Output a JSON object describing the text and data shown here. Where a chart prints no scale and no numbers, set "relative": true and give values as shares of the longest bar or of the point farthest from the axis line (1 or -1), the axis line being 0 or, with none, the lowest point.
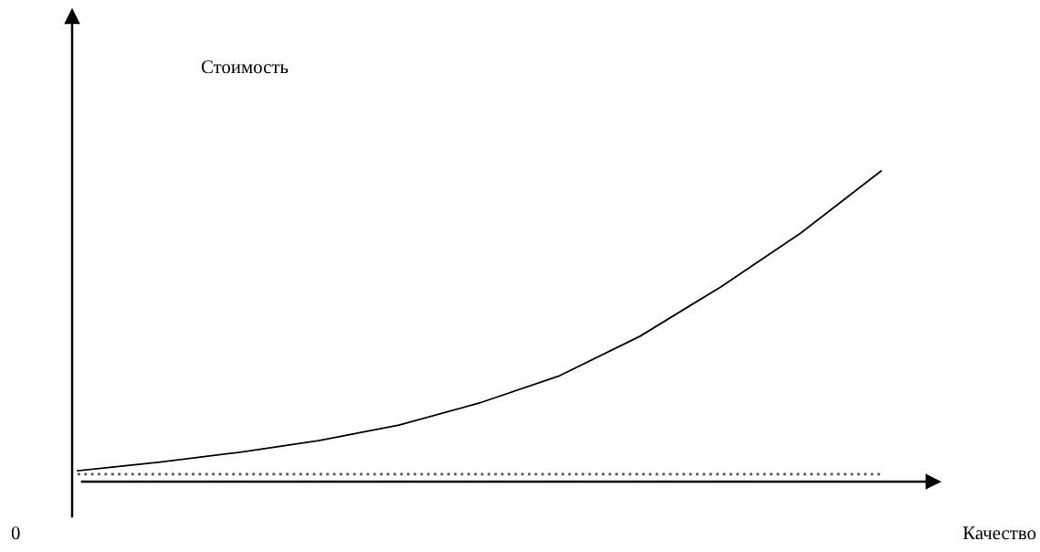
{
  "chart_data": {
    "type": "line",
    "relative": true,
    "xlabel": "Качество",
    "annotations": [
      "Стоимость",
      "0"
    ],
    "categories": [
      null,
      null,
      null,
      null,
      null,
      null,
      null,
      null,
      null,
      null,
      null
    ],
    "series": [
      {
        "color": "#000000",
        "line_style": "solid",
        "values": [
          0.035,
          0.062,
          0.094,
          0.132,
          0.182,
          0.253,
          0.341,
          0.468,
          0.626,
          0.8,
          1
        ]
      },
      {
        "color": "#555555",
        "line_style": "dotted",
        "values": [
          0.024,
          0.024,
          0.024,
          0.024,
          0.024,
          0.024,
          0.024,
          0.024,
          0.024,
          0.024,
          0.024
        ]
      }
    ]
  }
}
